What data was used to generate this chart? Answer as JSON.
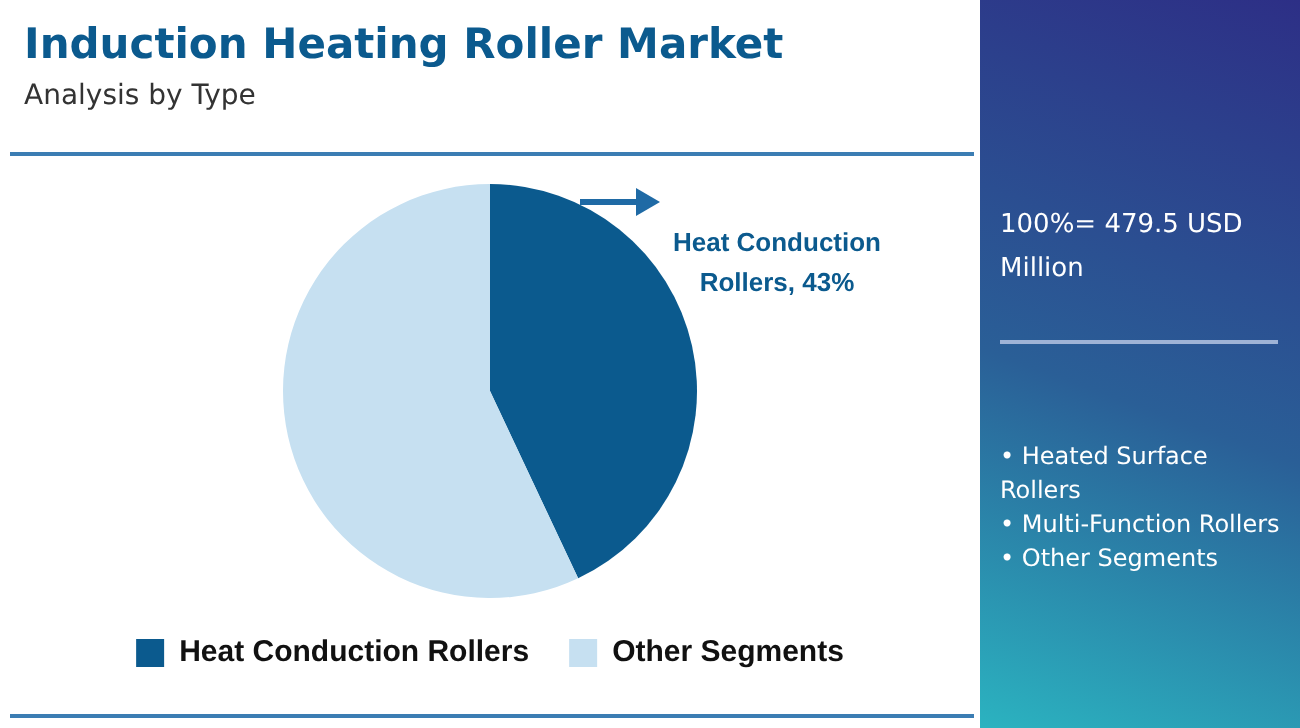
{
  "chart_data": {
    "type": "pie",
    "title": "Induction Heating Roller Market",
    "subtitle": "Analysis by Type",
    "categories": [
      "Heat Conduction Rollers",
      "Other Segments"
    ],
    "values": [
      43,
      57
    ],
    "colors": [
      "#0b5a8e",
      "#c6e0f1"
    ],
    "value_labels": [
      "Heat Conduction Rollers, 43%",
      null
    ],
    "legend": "bottom",
    "annotations": [
      "100%= 479.5 USD Million",
      "• Heated Surface Rollers",
      "• Multi-Function Rollers",
      "• Other Segments"
    ]
  }
}
